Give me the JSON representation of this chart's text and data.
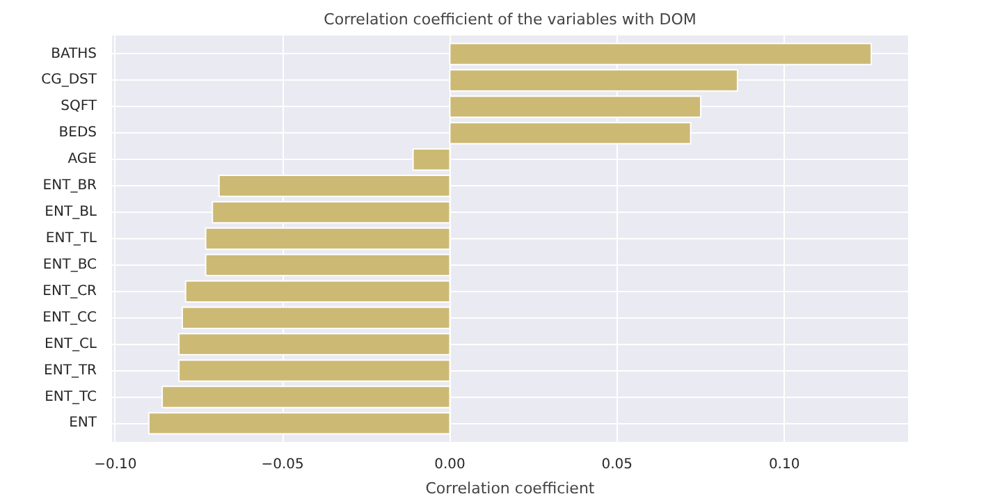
{
  "chart_data": {
    "type": "bar",
    "orientation": "horizontal",
    "title": "Correlation coefficient of the variables with DOM",
    "xlabel": "Correlation coefficient",
    "categories": [
      "BATHS",
      "CG_DST",
      "SQFT",
      "BEDS",
      "AGE",
      "ENT_BR",
      "ENT_BL",
      "ENT_TL",
      "ENT_BC",
      "ENT_CR",
      "ENT_CC",
      "ENT_CL",
      "ENT_TR",
      "ENT_TC",
      "ENT"
    ],
    "values": [
      0.126,
      0.086,
      0.075,
      0.072,
      -0.011,
      -0.069,
      -0.071,
      -0.073,
      -0.073,
      -0.079,
      -0.08,
      -0.081,
      -0.081,
      -0.086,
      -0.09
    ],
    "color": "#ccb974",
    "xlim": [
      -0.101,
      0.137
    ],
    "xticks": [
      {
        "value": -0.1,
        "label": "−0.10"
      },
      {
        "value": -0.05,
        "label": "−0.05"
      },
      {
        "value": 0,
        "label": "0.00"
      },
      {
        "value": 0.05,
        "label": "0.05"
      },
      {
        "value": 0.1,
        "label": "0.10"
      }
    ],
    "grid": true
  }
}
